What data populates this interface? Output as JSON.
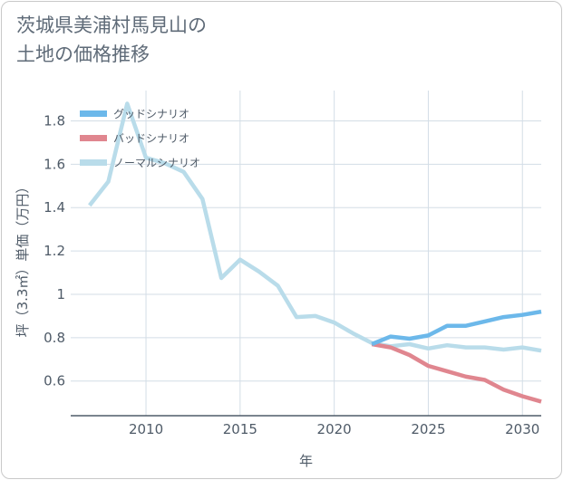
{
  "page": {
    "title": "茨城県美浦村馬見山の\n土地の価格推移"
  },
  "colors": {
    "good": "#6cb8ea",
    "bad": "#e0868f",
    "normal": "#b9dcea",
    "grid": "#d3dde6",
    "axis": "#4f5b68"
  },
  "chart_data": {
    "type": "line",
    "title": "茨城県美浦村馬見山の土地の価格推移",
    "xlabel": "年",
    "ylabel": "坪（3.3㎡）単価（万円）",
    "xlim": [
      2006,
      2031
    ],
    "ylim": [
      0.44,
      1.94
    ],
    "x_ticks": [
      2010,
      2015,
      2020,
      2025,
      2030
    ],
    "y_ticks": [
      0.6,
      0.8,
      1,
      1.2,
      1.4,
      1.6,
      1.8
    ],
    "x_tick_labels": [
      "2010",
      "2015",
      "2020",
      "2025",
      "2030"
    ],
    "y_tick_labels": [
      "0.6",
      "0.8",
      "1",
      "1.2",
      "1.4",
      "1.6",
      "1.8"
    ],
    "grid": true,
    "legend_position": "top-left",
    "series": [
      {
        "name": "グッドシナリオ",
        "key": "good",
        "x": [
          2022,
          2023,
          2024,
          2025,
          2026,
          2027,
          2028,
          2029,
          2030,
          2031
        ],
        "y": [
          0.77,
          0.805,
          0.795,
          0.81,
          0.855,
          0.855,
          0.875,
          0.895,
          0.905,
          0.92
        ]
      },
      {
        "name": "バッドシナリオ",
        "key": "bad",
        "x": [
          2022,
          2023,
          2024,
          2025,
          2026,
          2027,
          2028,
          2029,
          2030,
          2031
        ],
        "y": [
          0.77,
          0.755,
          0.72,
          0.67,
          0.645,
          0.62,
          0.605,
          0.56,
          0.53,
          0.505
        ]
      },
      {
        "name": "ノーマルシナリオ",
        "key": "normal",
        "x": [
          2007,
          2008,
          2009,
          2010,
          2011,
          2012,
          2013,
          2014,
          2015,
          2016,
          2017,
          2018,
          2019,
          2020,
          2021,
          2022,
          2023,
          2024,
          2025,
          2026,
          2027,
          2028,
          2029,
          2030,
          2031
        ],
        "y": [
          1.41,
          1.52,
          1.88,
          1.63,
          1.605,
          1.565,
          1.44,
          1.075,
          1.16,
          1.105,
          1.04,
          0.895,
          0.9,
          0.87,
          0.82,
          0.775,
          0.76,
          0.77,
          0.75,
          0.765,
          0.755,
          0.755,
          0.745,
          0.755,
          0.74
        ]
      }
    ]
  }
}
